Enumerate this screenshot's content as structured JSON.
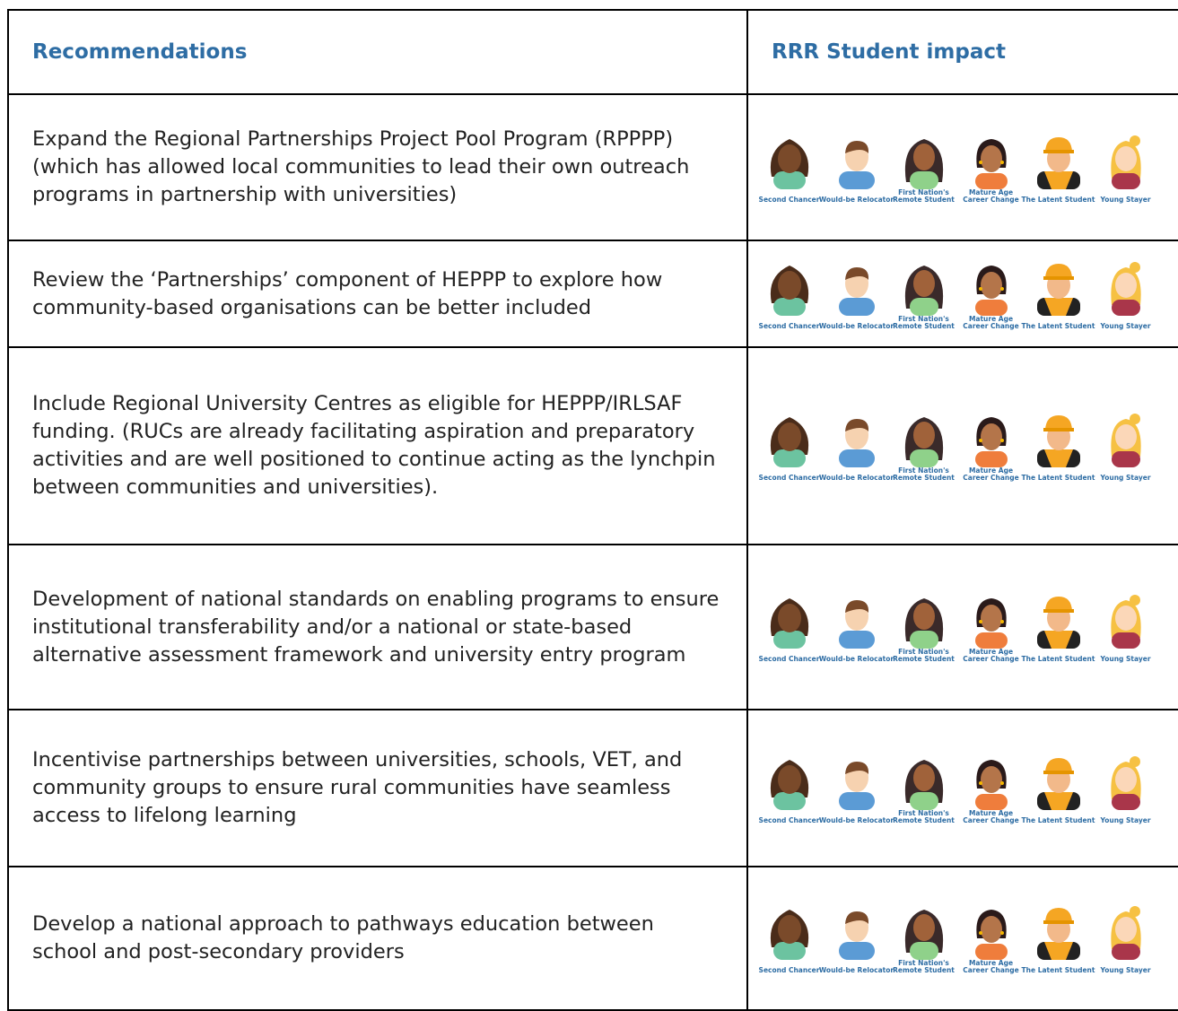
{
  "table": {
    "header": [
      "Recommendations",
      "RRR Student impact"
    ],
    "personas": [
      [
        "Second Chancer"
      ],
      [
        "Would-be Relocator"
      ],
      [
        "First Nation's",
        "Remote Student"
      ],
      [
        "Mature Age",
        "Career Change"
      ],
      [
        "The Latent Student"
      ],
      [
        "Young Stayer"
      ]
    ],
    "rows": [
      "Expand the Regional Partnerships Project Pool Program (RPPPP) (which has allowed local communities to lead their own outreach programs in partnership with universities)",
      "Review the ‘Partnerships’ component of HEPPP to explore how community-based organisations can be better included",
      "Include Regional University Centres as eligible for HEPPP/IRLSAF funding. (RUCs are already facilitating aspiration and preparatory activities and are well positioned to continue acting as the lynchpin between communities and universities).",
      "Development of national standards on enabling programs to ensure institutional transferability and/or a national or state-based alternative assessment framework and university entry program",
      "Incentivise partnerships between universities, schools, VET, and community groups to ensure rural communities have seamless access to lifelong learning",
      "Develop a national approach to pathways education between school and post-secondary providers"
    ]
  }
}
